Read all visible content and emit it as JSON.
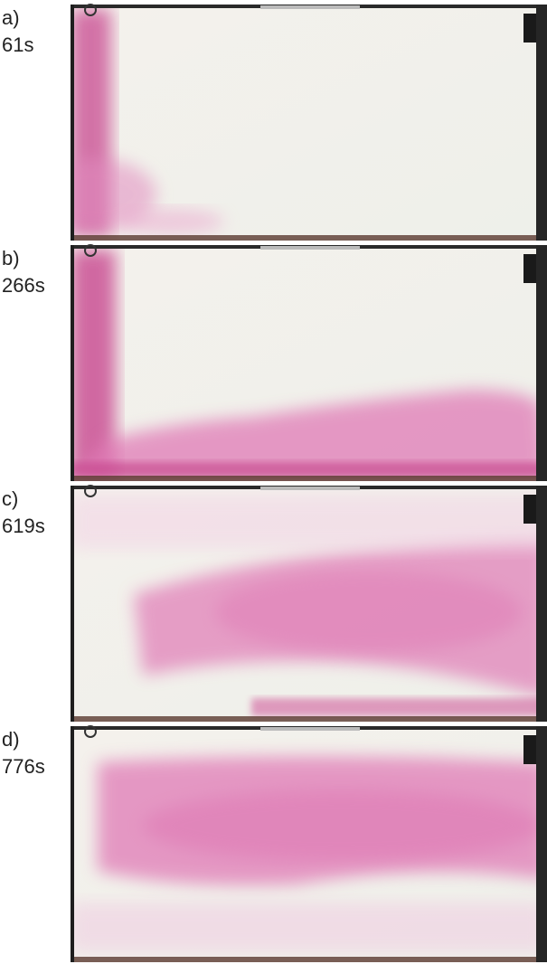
{
  "panels": [
    {
      "label": "a)",
      "time": "61s"
    },
    {
      "label": "b)",
      "time": "266s"
    },
    {
      "label": "c)",
      "time": "619s"
    },
    {
      "label": "d)",
      "time": "776s"
    }
  ]
}
